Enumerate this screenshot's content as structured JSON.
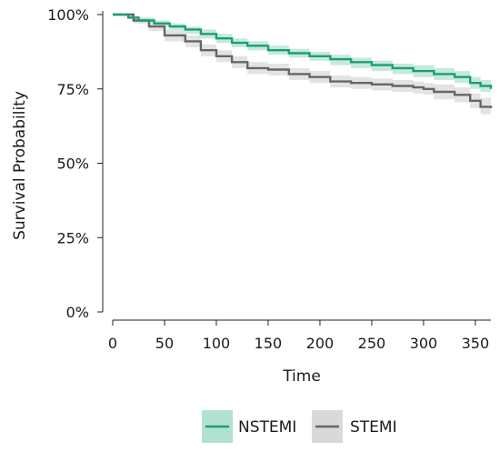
{
  "chart_data": {
    "type": "line",
    "subtype": "kaplan-meier survival curve with confidence bands",
    "title": "",
    "xlabel": "Time",
    "ylabel": "Survival Probability",
    "xlim": [
      0,
      365
    ],
    "ylim": [
      0,
      1
    ],
    "x_ticks": [
      {
        "value": 0,
        "label": "0"
      },
      {
        "value": 50,
        "label": "50"
      },
      {
        "value": 100,
        "label": "100"
      },
      {
        "value": 150,
        "label": "150"
      },
      {
        "value": 200,
        "label": "200"
      },
      {
        "value": 250,
        "label": "250"
      },
      {
        "value": 300,
        "label": "300"
      },
      {
        "value": 350,
        "label": "350"
      }
    ],
    "y_ticks": [
      {
        "value": 0,
        "label": "0%"
      },
      {
        "value": 0.25,
        "label": "25%"
      },
      {
        "value": 0.5,
        "label": "50%"
      },
      {
        "value": 0.75,
        "label": "75%"
      },
      {
        "value": 1.0,
        "label": "100%"
      }
    ],
    "grid": false,
    "legend_position": "bottom",
    "series": [
      {
        "name": "NSTEMI",
        "color": "#1b9e77",
        "band_color": "#b3e1d0",
        "points": [
          [
            0,
            1.0
          ],
          [
            10,
            1.0
          ],
          [
            15,
            0.99
          ],
          [
            25,
            0.98
          ],
          [
            40,
            0.97
          ],
          [
            55,
            0.96
          ],
          [
            70,
            0.95
          ],
          [
            85,
            0.935
          ],
          [
            100,
            0.92
          ],
          [
            115,
            0.905
          ],
          [
            130,
            0.895
          ],
          [
            150,
            0.88
          ],
          [
            170,
            0.87
          ],
          [
            190,
            0.86
          ],
          [
            210,
            0.85
          ],
          [
            230,
            0.84
          ],
          [
            250,
            0.83
          ],
          [
            270,
            0.82
          ],
          [
            290,
            0.81
          ],
          [
            310,
            0.8
          ],
          [
            330,
            0.79
          ],
          [
            345,
            0.77
          ],
          [
            355,
            0.76
          ],
          [
            365,
            0.75
          ]
        ],
        "ci_upper": [
          [
            0,
            1.0
          ],
          [
            10,
            1.0
          ],
          [
            15,
            0.995
          ],
          [
            25,
            0.99
          ],
          [
            40,
            0.98
          ],
          [
            55,
            0.97
          ],
          [
            70,
            0.96
          ],
          [
            85,
            0.95
          ],
          [
            100,
            0.935
          ],
          [
            115,
            0.92
          ],
          [
            130,
            0.91
          ],
          [
            150,
            0.895
          ],
          [
            170,
            0.885
          ],
          [
            190,
            0.875
          ],
          [
            210,
            0.865
          ],
          [
            230,
            0.855
          ],
          [
            250,
            0.845
          ],
          [
            270,
            0.835
          ],
          [
            290,
            0.83
          ],
          [
            310,
            0.82
          ],
          [
            330,
            0.81
          ],
          [
            345,
            0.79
          ],
          [
            355,
            0.78
          ],
          [
            365,
            0.77
          ]
        ],
        "ci_lower": [
          [
            0,
            1.0
          ],
          [
            10,
            1.0
          ],
          [
            15,
            0.985
          ],
          [
            25,
            0.97
          ],
          [
            40,
            0.96
          ],
          [
            55,
            0.95
          ],
          [
            70,
            0.935
          ],
          [
            85,
            0.92
          ],
          [
            100,
            0.905
          ],
          [
            115,
            0.89
          ],
          [
            130,
            0.88
          ],
          [
            150,
            0.865
          ],
          [
            170,
            0.855
          ],
          [
            190,
            0.845
          ],
          [
            210,
            0.83
          ],
          [
            230,
            0.82
          ],
          [
            250,
            0.81
          ],
          [
            270,
            0.8
          ],
          [
            290,
            0.79
          ],
          [
            310,
            0.78
          ],
          [
            330,
            0.77
          ],
          [
            345,
            0.75
          ],
          [
            355,
            0.74
          ],
          [
            365,
            0.73
          ]
        ]
      },
      {
        "name": "STEMI",
        "color": "#666666",
        "band_color": "#d9d9d9",
        "points": [
          [
            0,
            1.0
          ],
          [
            10,
            1.0
          ],
          [
            20,
            0.98
          ],
          [
            35,
            0.96
          ],
          [
            50,
            0.93
          ],
          [
            70,
            0.91
          ],
          [
            85,
            0.88
          ],
          [
            100,
            0.86
          ],
          [
            115,
            0.84
          ],
          [
            130,
            0.82
          ],
          [
            150,
            0.815
          ],
          [
            170,
            0.8
          ],
          [
            190,
            0.79
          ],
          [
            210,
            0.775
          ],
          [
            230,
            0.77
          ],
          [
            250,
            0.765
          ],
          [
            270,
            0.76
          ],
          [
            290,
            0.755
          ],
          [
            300,
            0.75
          ],
          [
            310,
            0.74
          ],
          [
            330,
            0.73
          ],
          [
            345,
            0.71
          ],
          [
            355,
            0.69
          ],
          [
            365,
            0.685
          ]
        ],
        "ci_upper": [
          [
            0,
            1.0
          ],
          [
            10,
            1.0
          ],
          [
            20,
            0.99
          ],
          [
            35,
            0.975
          ],
          [
            50,
            0.95
          ],
          [
            70,
            0.93
          ],
          [
            85,
            0.9
          ],
          [
            100,
            0.88
          ],
          [
            115,
            0.86
          ],
          [
            130,
            0.84
          ],
          [
            150,
            0.835
          ],
          [
            170,
            0.82
          ],
          [
            190,
            0.81
          ],
          [
            210,
            0.795
          ],
          [
            230,
            0.79
          ],
          [
            250,
            0.785
          ],
          [
            270,
            0.78
          ],
          [
            290,
            0.775
          ],
          [
            300,
            0.77
          ],
          [
            310,
            0.765
          ],
          [
            330,
            0.755
          ],
          [
            345,
            0.735
          ],
          [
            355,
            0.72
          ],
          [
            365,
            0.715
          ]
        ],
        "ci_lower": [
          [
            0,
            1.0
          ],
          [
            10,
            1.0
          ],
          [
            20,
            0.97
          ],
          [
            35,
            0.945
          ],
          [
            50,
            0.91
          ],
          [
            70,
            0.89
          ],
          [
            85,
            0.86
          ],
          [
            100,
            0.84
          ],
          [
            115,
            0.82
          ],
          [
            130,
            0.8
          ],
          [
            150,
            0.795
          ],
          [
            170,
            0.78
          ],
          [
            190,
            0.77
          ],
          [
            210,
            0.755
          ],
          [
            230,
            0.75
          ],
          [
            250,
            0.745
          ],
          [
            270,
            0.74
          ],
          [
            290,
            0.735
          ],
          [
            300,
            0.73
          ],
          [
            310,
            0.715
          ],
          [
            330,
            0.705
          ],
          [
            345,
            0.685
          ],
          [
            355,
            0.665
          ],
          [
            365,
            0.655
          ]
        ]
      }
    ]
  }
}
